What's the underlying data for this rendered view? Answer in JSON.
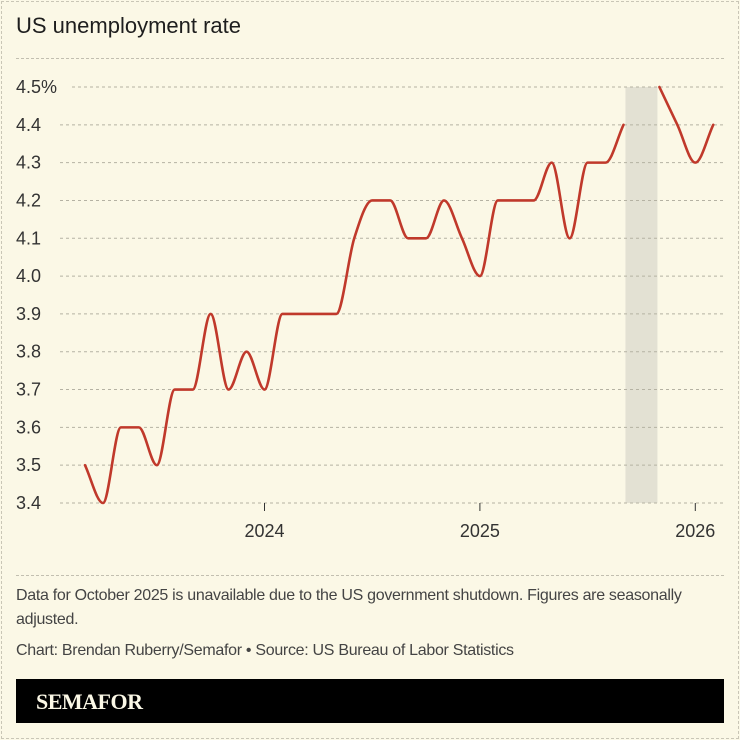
{
  "title": "US unemployment rate",
  "chart_data": {
    "type": "line",
    "title": "US unemployment rate",
    "xlabel": "",
    "ylabel": "",
    "ylim": [
      3.4,
      4.5
    ],
    "yticks": [
      "4.5%",
      "4.4",
      "4.3",
      "4.2",
      "4.1",
      "4.0",
      "3.9",
      "3.8",
      "3.7",
      "3.6",
      "3.5",
      "3.4"
    ],
    "xticks": [
      "2024",
      "2025",
      "2026"
    ],
    "grid": true,
    "line_color": "#c0392b",
    "shaded_region": {
      "label_month": "2025-10",
      "color": "#e3e1d3"
    },
    "x": [
      "2023-03",
      "2023-04",
      "2023-05",
      "2023-06",
      "2023-07",
      "2023-08",
      "2023-09",
      "2023-10",
      "2023-11",
      "2023-12",
      "2024-01",
      "2024-02",
      "2024-03",
      "2024-04",
      "2024-05",
      "2024-06",
      "2024-07",
      "2024-08",
      "2024-09",
      "2024-10",
      "2024-11",
      "2024-12",
      "2025-01",
      "2025-02",
      "2025-03",
      "2025-04",
      "2025-05",
      "2025-06",
      "2025-07",
      "2025-08",
      "2025-09",
      "2025-10",
      "2025-11",
      "2025-12",
      "2026-01",
      "2026-02"
    ],
    "values": [
      3.5,
      3.4,
      3.6,
      3.6,
      3.5,
      3.7,
      3.7,
      3.9,
      3.7,
      3.8,
      3.7,
      3.9,
      3.9,
      3.9,
      3.9,
      4.1,
      4.2,
      4.2,
      4.1,
      4.1,
      4.2,
      4.1,
      4.0,
      4.2,
      4.2,
      4.2,
      4.3,
      4.1,
      4.3,
      4.3,
      4.4,
      null,
      4.5,
      4.4,
      4.3,
      4.4
    ]
  },
  "notes": "Data for October 2025 is unavailable due to the US government shutdown. Figures are seasonally adjusted.",
  "credit": "Chart: Brendan Ruberry/Semafor • Source: US Bureau of Labor Statistics",
  "brand": "SEMAFOR"
}
